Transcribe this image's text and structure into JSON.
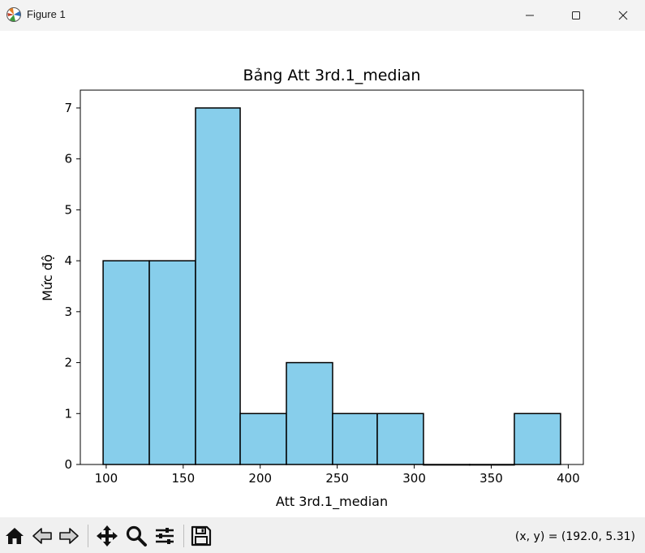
{
  "window": {
    "title": "Figure 1",
    "icons": [
      "matplotlib-icon",
      "minimize-icon",
      "maximize-icon",
      "close-icon"
    ]
  },
  "chart_data": {
    "type": "bar",
    "title": "Bảng Att 3rd.1_median",
    "xlabel": "Att 3rd.1_median",
    "ylabel": "Mức độ",
    "bin_edges": [
      98,
      128,
      158,
      187,
      217,
      247,
      276,
      306,
      336,
      365,
      395
    ],
    "values": [
      4,
      4,
      7,
      1,
      2,
      1,
      1,
      0,
      0,
      1
    ],
    "xlim": [
      83.2,
      409.8
    ],
    "ylim": [
      0,
      7.35
    ],
    "xticks": [
      100,
      150,
      200,
      250,
      300,
      350,
      400
    ],
    "yticks": [
      0,
      1,
      2,
      3,
      4,
      5,
      6,
      7
    ],
    "bar_color": "#87ceeb",
    "edge_color": "#000000",
    "grid": false
  },
  "toolbar": {
    "icons": [
      "home-icon",
      "back-icon",
      "forward-icon",
      "pan-icon",
      "zoom-icon",
      "configure-subplots-icon",
      "save-icon"
    ],
    "coords_text": "(x, y) = (192.0, 5.31)"
  }
}
